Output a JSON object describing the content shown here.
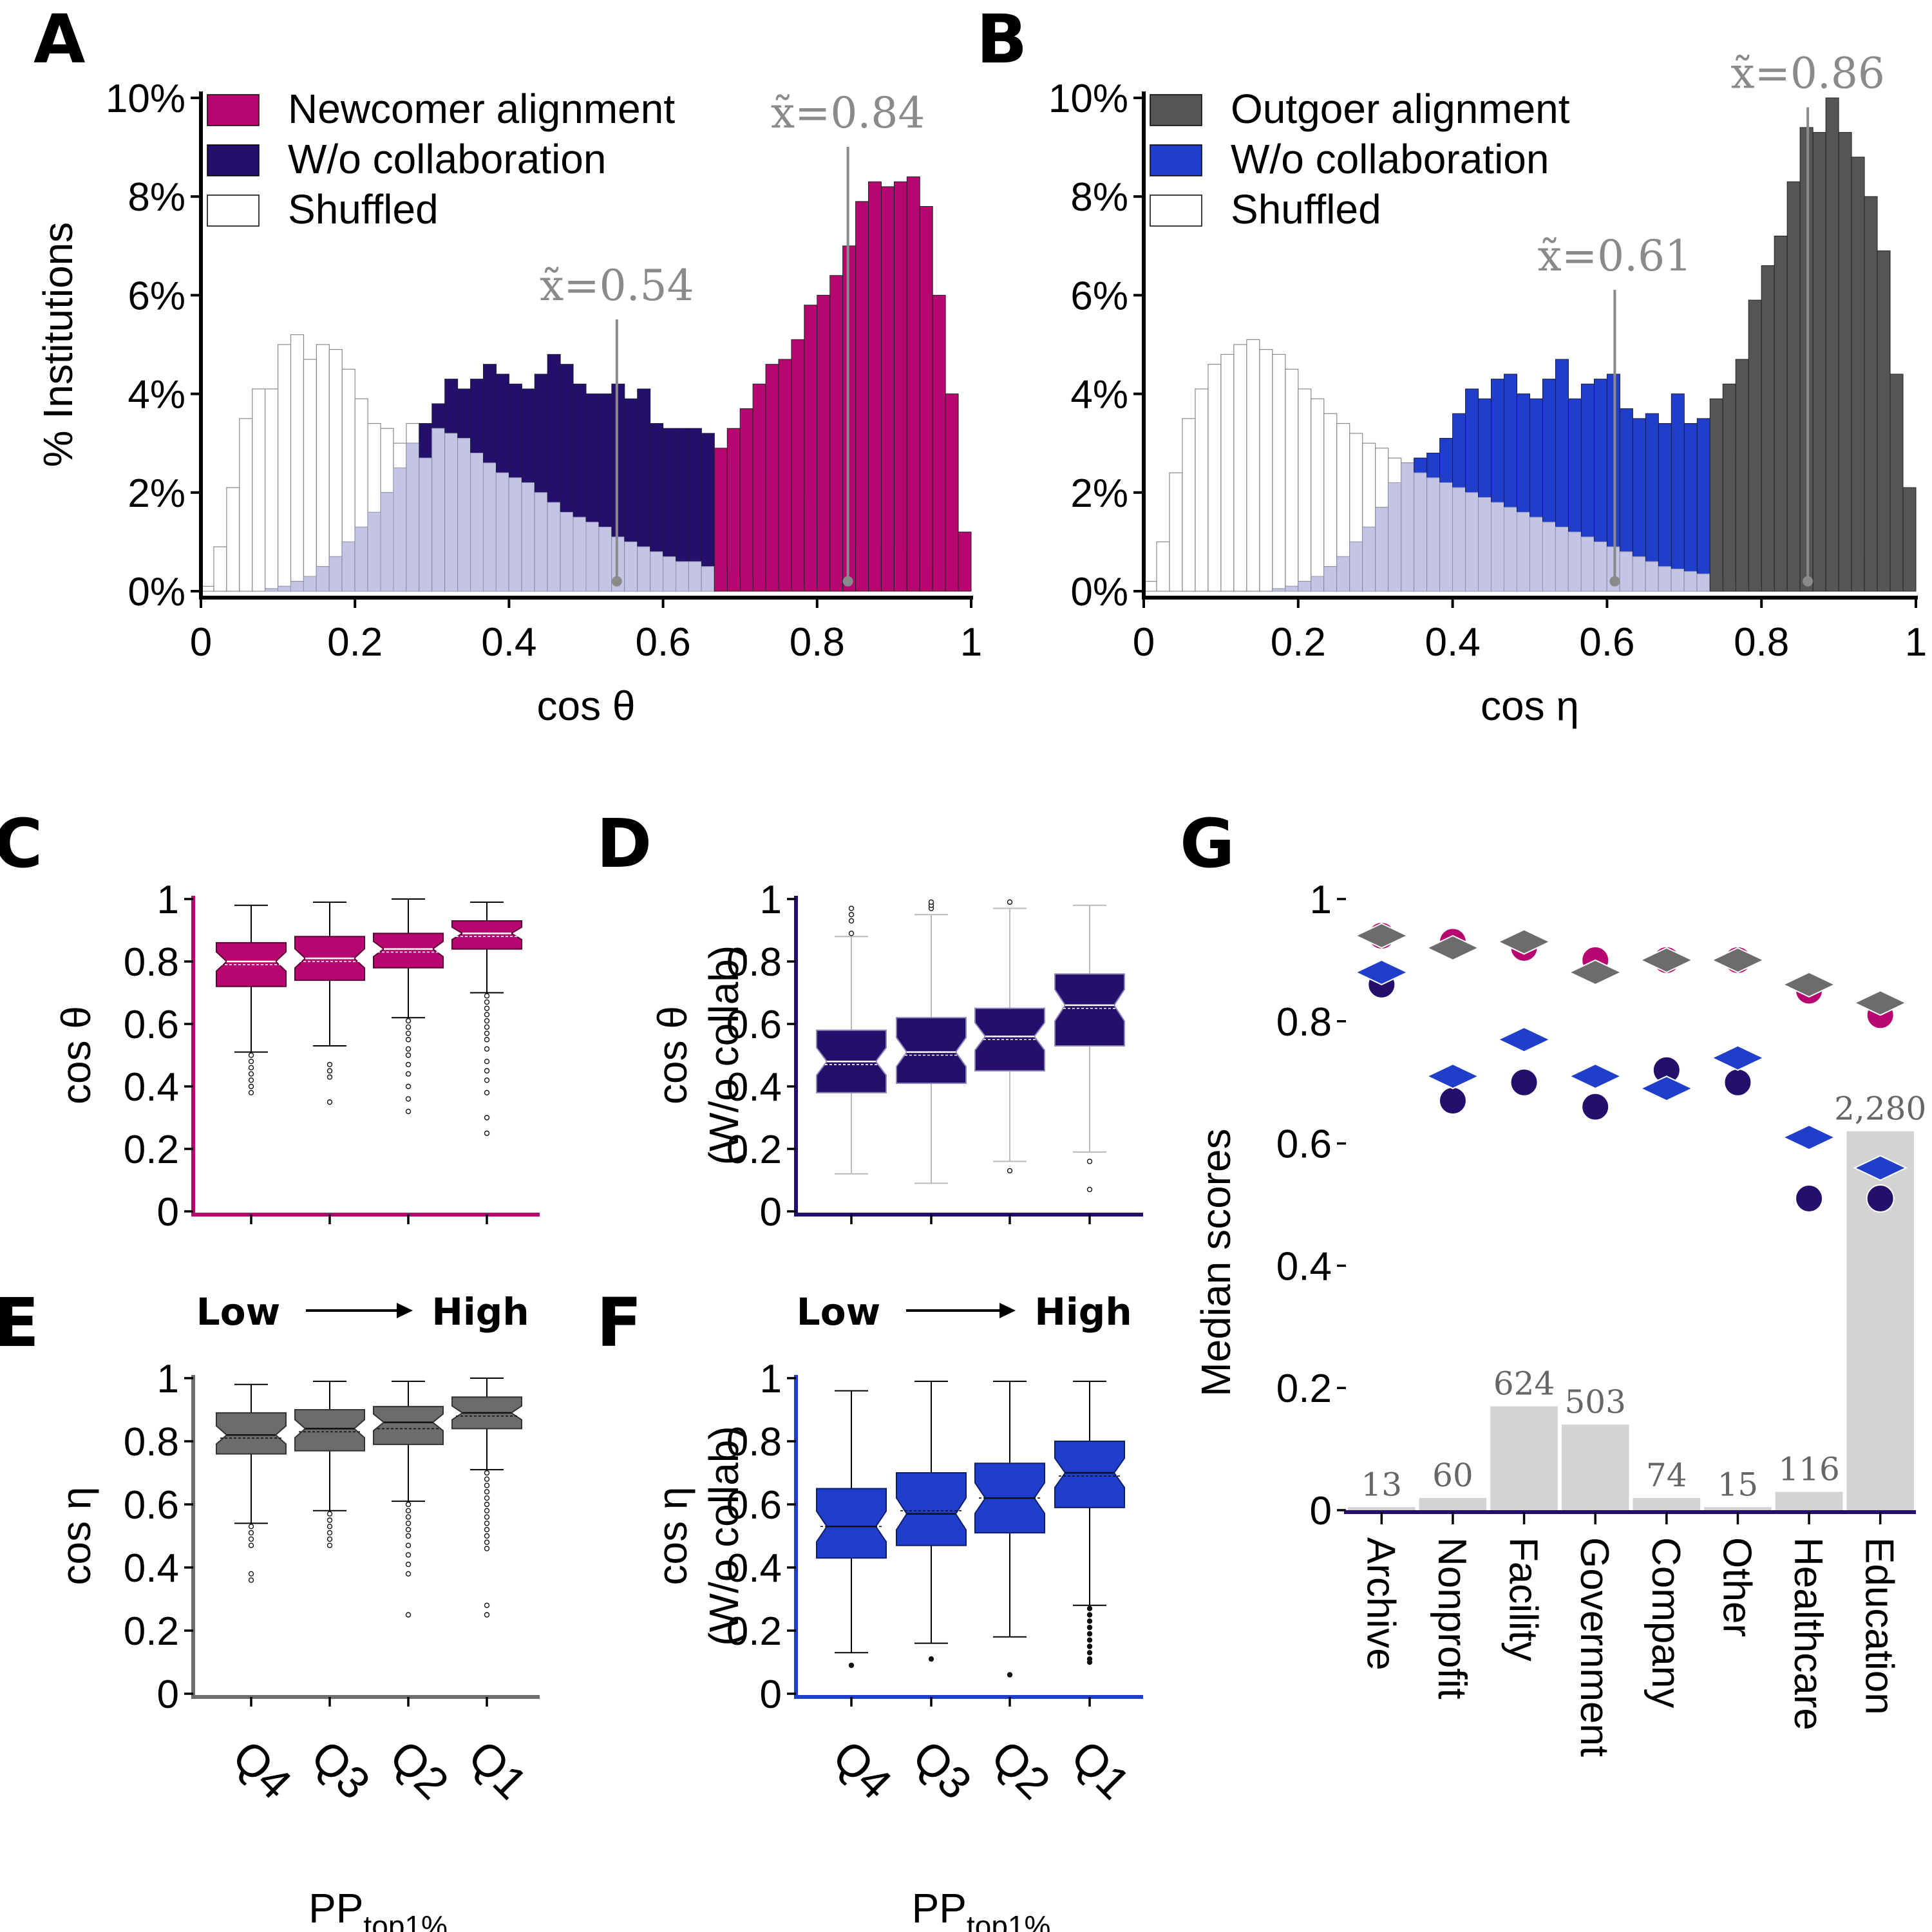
{
  "colors": {
    "magenta": "#b7066f",
    "navy": "#24106c",
    "gray": "#6c6c6c",
    "darkgray": "#555555",
    "blue": "#1f3fca",
    "lightbar": "#d3d3d1",
    "shuffled_overlap": "#c4c5e4",
    "median_line": "#8a8a8a"
  },
  "chart_data": [
    {
      "id": "A",
      "type": "bar",
      "panel_label": "A",
      "ylabel": "% Institutions",
      "xlabel": "cos θ",
      "xlim": [
        0,
        1
      ],
      "ylim": [
        0,
        10
      ],
      "xticks": [
        "0",
        "0.2",
        "0.4",
        "0.6",
        "0.8",
        "1"
      ],
      "yticks": [
        "0%",
        "2%",
        "4%",
        "6%",
        "8%",
        "10%"
      ],
      "legend": [
        "Newcomer alignment",
        "W/o collaboration",
        "Shuffled"
      ],
      "legend_position": "top-left",
      "bin_width": 0.02,
      "series": [
        {
          "name": "Newcomer alignment",
          "values": [
            0,
            0,
            0,
            0,
            0,
            0,
            0,
            0,
            0,
            0,
            0,
            0,
            0,
            0,
            0,
            0.05,
            0.05,
            0.1,
            0.1,
            0.15,
            0.2,
            0.25,
            0.3,
            0.4,
            0.5,
            0.6,
            0.7,
            0.8,
            0.9,
            1.0,
            1.1,
            1.1,
            1.2,
            1.3,
            1.4,
            1.6,
            1.8,
            2.0,
            2.3,
            2.6,
            2.9,
            3.3,
            3.7,
            4.2,
            4.6,
            4.7,
            5.1,
            5.8,
            6.0,
            6.4,
            7.0,
            7.9,
            8.3,
            8.2,
            8.3,
            8.4,
            7.8,
            6.0,
            4.0,
            1.2
          ]
        },
        {
          "name": "W/o collaboration",
          "values": [
            0,
            0,
            0,
            0,
            0,
            0.05,
            0.1,
            0.2,
            0.3,
            0.5,
            0.7,
            1.0,
            1.3,
            1.6,
            2.0,
            2.5,
            3.0,
            3.4,
            3.8,
            4.3,
            4.1,
            4.3,
            4.6,
            4.4,
            4.2,
            4.1,
            4.4,
            4.8,
            4.6,
            4.2,
            4.0,
            4.0,
            4.2,
            3.9,
            4.1,
            3.4,
            3.3,
            3.3,
            3.3,
            3.2,
            2.5,
            2.6,
            2.4,
            2.3,
            2.4,
            2.3,
            2.0,
            1.9,
            1.3,
            1.2,
            1.1,
            0.9,
            0.9,
            0.9,
            0.9,
            0.8,
            0.7,
            0.4,
            0.3,
            0.2
          ]
        },
        {
          "name": "Shuffled",
          "values": [
            0.1,
            0.9,
            2.1,
            3.5,
            4.1,
            4.1,
            5.0,
            5.2,
            4.7,
            5.0,
            4.9,
            4.5,
            3.9,
            3.4,
            3.3,
            3.0,
            3.4,
            2.7,
            3.3,
            3.2,
            3.1,
            2.8,
            2.6,
            2.4,
            2.3,
            2.2,
            2.0,
            1.8,
            1.6,
            1.5,
            1.4,
            1.3,
            1.1,
            1.0,
            0.9,
            0.8,
            0.7,
            0.6,
            0.6,
            0.5,
            0.5,
            0.4,
            0.3,
            0.3,
            0.2,
            0.2,
            0.15,
            0.1,
            0.1,
            0.05,
            0.05,
            0,
            0,
            0,
            0,
            0,
            0,
            0,
            0,
            0
          ]
        }
      ],
      "medians": [
        {
          "label": "x̃=0.54",
          "value": 0.54,
          "label_y": 5.9
        },
        {
          "label": "x̃=0.84",
          "value": 0.84,
          "label_y": 9.4
        }
      ]
    },
    {
      "id": "B",
      "type": "bar",
      "panel_label": "B",
      "ylabel": "",
      "xlabel": "cos η",
      "xlim": [
        0,
        1
      ],
      "ylim": [
        0,
        10
      ],
      "xticks": [
        "0",
        "0.2",
        "0.4",
        "0.6",
        "0.8",
        "1"
      ],
      "yticks": [
        "0%",
        "2%",
        "4%",
        "6%",
        "8%",
        "10%"
      ],
      "legend": [
        "Outgoer alignment",
        "W/o collaboration",
        "Shuffled"
      ],
      "legend_position": "top-left",
      "bin_width": 0.02,
      "series": [
        {
          "name": "Outgoer alignment",
          "values": [
            0,
            0,
            0,
            0,
            0,
            0,
            0,
            0,
            0,
            0,
            0,
            0,
            0,
            0,
            0,
            0,
            0.05,
            0.05,
            0.1,
            0.1,
            0.15,
            0.2,
            0.2,
            0.3,
            0.3,
            0.4,
            0.4,
            0.5,
            0.6,
            0.7,
            0.7,
            0.8,
            0.9,
            1.0,
            1.0,
            1.1,
            1.2,
            1.4,
            1.6,
            1.8,
            2.0,
            2.4,
            2.8,
            3.2,
            3.9,
            4.2,
            4.7,
            5.9,
            6.6,
            7.2,
            8.3,
            9.4,
            9.3,
            10.0,
            9.3,
            8.8,
            8.0,
            6.9,
            4.4,
            2.1
          ]
        },
        {
          "name": "W/o collaboration",
          "values": [
            0,
            0,
            0,
            0,
            0,
            0,
            0,
            0,
            0,
            0,
            0.05,
            0.1,
            0.2,
            0.3,
            0.5,
            0.7,
            1.0,
            1.3,
            1.7,
            2.2,
            2.6,
            2.7,
            2.8,
            3.1,
            3.6,
            4.1,
            3.9,
            4.3,
            4.4,
            4.0,
            3.9,
            4.3,
            4.7,
            3.9,
            4.2,
            4.3,
            4.4,
            3.7,
            3.5,
            3.6,
            3.4,
            4.0,
            3.4,
            3.5,
            3.3,
            3.1,
            2.8,
            2.5,
            2.0,
            1.6,
            1.4,
            1.3,
            1.2,
            1.0,
            0.9,
            0.8,
            0.7,
            0.6,
            0.4,
            0.3
          ]
        },
        {
          "name": "Shuffled",
          "values": [
            0.2,
            1.0,
            2.4,
            3.5,
            4.1,
            4.6,
            4.8,
            5.0,
            5.1,
            4.9,
            4.8,
            4.5,
            4.1,
            3.9,
            3.6,
            3.4,
            3.2,
            3.0,
            2.9,
            2.7,
            2.6,
            2.4,
            2.3,
            2.2,
            2.1,
            2.0,
            1.9,
            1.8,
            1.7,
            1.6,
            1.5,
            1.4,
            1.3,
            1.2,
            1.1,
            1.0,
            0.9,
            0.8,
            0.7,
            0.6,
            0.5,
            0.45,
            0.4,
            0.35,
            0.3,
            0.25,
            0.2,
            0.15,
            0.1,
            0.1,
            0.05,
            0.05,
            0,
            0,
            0,
            0,
            0,
            0,
            0,
            0
          ]
        }
      ],
      "medians": [
        {
          "label": "x̃=0.61",
          "value": 0.61,
          "label_y": 6.5
        },
        {
          "label": "x̃=0.86",
          "value": 0.86,
          "label_y": 10.2
        }
      ]
    },
    {
      "id": "C",
      "type": "box",
      "panel_label": "C",
      "ylabel": "cos θ",
      "ylim": [
        0,
        1
      ],
      "yticks": [
        "0",
        "0.2",
        "0.4",
        "0.6",
        "0.8",
        "1"
      ],
      "boxes": [
        {
          "q1": 0.72,
          "median": 0.8,
          "q3": 0.86,
          "mean": 0.79,
          "lo": 0.51,
          "hi": 0.98,
          "fliers": [
            0.5,
            0.48,
            0.46,
            0.44,
            0.42,
            0.4,
            0.38
          ]
        },
        {
          "q1": 0.74,
          "median": 0.81,
          "q3": 0.88,
          "mean": 0.8,
          "lo": 0.53,
          "hi": 0.99,
          "fliers": [
            0.47,
            0.45,
            0.43,
            0.35
          ]
        },
        {
          "q1": 0.78,
          "median": 0.84,
          "q3": 0.89,
          "mean": 0.83,
          "lo": 0.62,
          "hi": 1.0,
          "fliers": [
            0.61,
            0.59,
            0.57,
            0.55,
            0.52,
            0.5,
            0.47,
            0.44,
            0.4,
            0.36,
            0.32
          ]
        },
        {
          "q1": 0.84,
          "median": 0.89,
          "q3": 0.93,
          "mean": 0.88,
          "lo": 0.7,
          "hi": 0.99,
          "fliers": [
            0.69,
            0.67,
            0.65,
            0.63,
            0.61,
            0.59,
            0.57,
            0.55,
            0.52,
            0.48,
            0.45,
            0.42,
            0.38,
            0.3,
            0.25
          ]
        }
      ]
    },
    {
      "id": "D",
      "type": "box",
      "panel_label": "D",
      "ylabel": "cos θ",
      "ylabel2": "(W/o collab)",
      "ylim": [
        0,
        1
      ],
      "yticks": [
        "0",
        "0.2",
        "0.4",
        "0.6",
        "0.8",
        "1"
      ],
      "boxes": [
        {
          "q1": 0.38,
          "median": 0.48,
          "q3": 0.58,
          "mean": 0.47,
          "lo": 0.12,
          "hi": 0.88,
          "fliers": [
            0.89,
            0.93,
            0.95,
            0.97
          ]
        },
        {
          "q1": 0.41,
          "median": 0.51,
          "q3": 0.62,
          "mean": 0.5,
          "lo": 0.09,
          "hi": 0.95,
          "fliers": [
            0.97,
            0.98,
            0.99
          ]
        },
        {
          "q1": 0.45,
          "median": 0.56,
          "q3": 0.65,
          "mean": 0.55,
          "lo": 0.16,
          "hi": 0.97,
          "fliers": [
            0.13,
            0.99
          ]
        },
        {
          "q1": 0.53,
          "median": 0.66,
          "q3": 0.76,
          "mean": 0.65,
          "lo": 0.19,
          "hi": 0.98,
          "fliers": [
            0.16,
            0.07
          ]
        }
      ]
    },
    {
      "id": "E",
      "type": "box",
      "panel_label": "E",
      "ylabel": "cos η",
      "ylim": [
        0,
        1
      ],
      "yticks": [
        "0",
        "0.2",
        "0.4",
        "0.6",
        "0.8",
        "1"
      ],
      "xticks": [
        "Q4",
        "Q3",
        "Q2",
        "Q1"
      ],
      "xlabel": "PP",
      "xlabel_sub": "top1%",
      "arrow_low": "Low",
      "arrow_high": "High",
      "boxes": [
        {
          "q1": 0.76,
          "median": 0.82,
          "q3": 0.89,
          "mean": 0.81,
          "lo": 0.54,
          "hi": 0.98,
          "fliers": [
            0.53,
            0.51,
            0.49,
            0.47,
            0.38,
            0.36
          ]
        },
        {
          "q1": 0.77,
          "median": 0.84,
          "q3": 0.9,
          "mean": 0.83,
          "lo": 0.58,
          "hi": 0.99,
          "fliers": [
            0.57,
            0.55,
            0.53,
            0.51,
            0.49,
            0.47
          ]
        },
        {
          "q1": 0.79,
          "median": 0.86,
          "q3": 0.91,
          "mean": 0.84,
          "lo": 0.61,
          "hi": 0.99,
          "fliers": [
            0.6,
            0.58,
            0.56,
            0.54,
            0.52,
            0.5,
            0.47,
            0.44,
            0.41,
            0.38,
            0.25
          ]
        },
        {
          "q1": 0.84,
          "median": 0.89,
          "q3": 0.94,
          "mean": 0.88,
          "lo": 0.71,
          "hi": 1.0,
          "fliers": [
            0.7,
            0.68,
            0.66,
            0.64,
            0.62,
            0.6,
            0.58,
            0.56,
            0.54,
            0.52,
            0.5,
            0.48,
            0.46,
            0.28,
            0.25
          ]
        }
      ]
    },
    {
      "id": "F",
      "type": "box",
      "panel_label": "F",
      "ylabel": "cos η",
      "ylabel2": "(W/o collab)",
      "ylim": [
        0,
        1
      ],
      "yticks": [
        "0",
        "0.2",
        "0.4",
        "0.6",
        "0.8",
        "1"
      ],
      "xticks": [
        "Q4",
        "Q3",
        "Q2",
        "Q1"
      ],
      "xlabel": "PP",
      "xlabel_sub": "top1%",
      "arrow_low": "Low",
      "arrow_high": "High",
      "boxes": [
        {
          "q1": 0.43,
          "median": 0.53,
          "q3": 0.65,
          "mean": 0.53,
          "lo": 0.13,
          "hi": 0.96,
          "fliers": [
            0.09
          ]
        },
        {
          "q1": 0.47,
          "median": 0.57,
          "q3": 0.7,
          "mean": 0.58,
          "lo": 0.16,
          "hi": 0.99,
          "fliers": [
            0.11
          ]
        },
        {
          "q1": 0.51,
          "median": 0.62,
          "q3": 0.73,
          "mean": 0.62,
          "lo": 0.18,
          "hi": 0.99,
          "fliers": [
            0.06
          ]
        },
        {
          "q1": 0.59,
          "median": 0.7,
          "q3": 0.8,
          "mean": 0.69,
          "lo": 0.28,
          "hi": 0.99,
          "fliers": [
            0.27,
            0.25,
            0.23,
            0.21,
            0.19,
            0.17,
            0.15,
            0.13,
            0.11,
            0.1
          ]
        }
      ]
    },
    {
      "id": "G",
      "type": "bar",
      "panel_label": "G",
      "ylabel": "Median scores",
      "ylim": [
        0,
        1
      ],
      "yticks": [
        "0",
        "0.2",
        "0.4",
        "0.6",
        "0.8",
        "1"
      ],
      "categories": [
        "Archive",
        "Nonprofit",
        "Facility",
        "Government",
        "Company",
        "Other",
        "Healthcare",
        "Education"
      ],
      "counts": [
        13,
        60,
        624,
        503,
        74,
        15,
        116,
        2280
      ],
      "count_labels": [
        "13",
        "60",
        "624",
        "503",
        "74",
        "15",
        "116",
        "2,280"
      ],
      "bar_heights": [
        0.005,
        0.02,
        0.17,
        0.14,
        0.02,
        0.005,
        0.03,
        0.62
      ],
      "series": [
        {
          "name": "Newcomer alignment",
          "marker": "circle",
          "color": "magenta",
          "values": [
            0.94,
            0.93,
            0.92,
            0.9,
            0.9,
            0.9,
            0.85,
            0.81
          ]
        },
        {
          "name": "Outgoer alignment",
          "marker": "diamond",
          "color": "gray",
          "values": [
            0.94,
            0.92,
            0.93,
            0.88,
            0.9,
            0.9,
            0.86,
            0.83
          ]
        },
        {
          "name": "Newcomer w/o collaboration",
          "marker": "circle",
          "color": "navy",
          "values": [
            0.86,
            0.67,
            0.7,
            0.66,
            0.72,
            0.7,
            0.51,
            0.51
          ]
        },
        {
          "name": "Outgoer w/o collaboration",
          "marker": "diamond",
          "color": "blue",
          "values": [
            0.88,
            0.71,
            0.77,
            0.71,
            0.69,
            0.74,
            0.61,
            0.56
          ]
        }
      ]
    }
  ]
}
